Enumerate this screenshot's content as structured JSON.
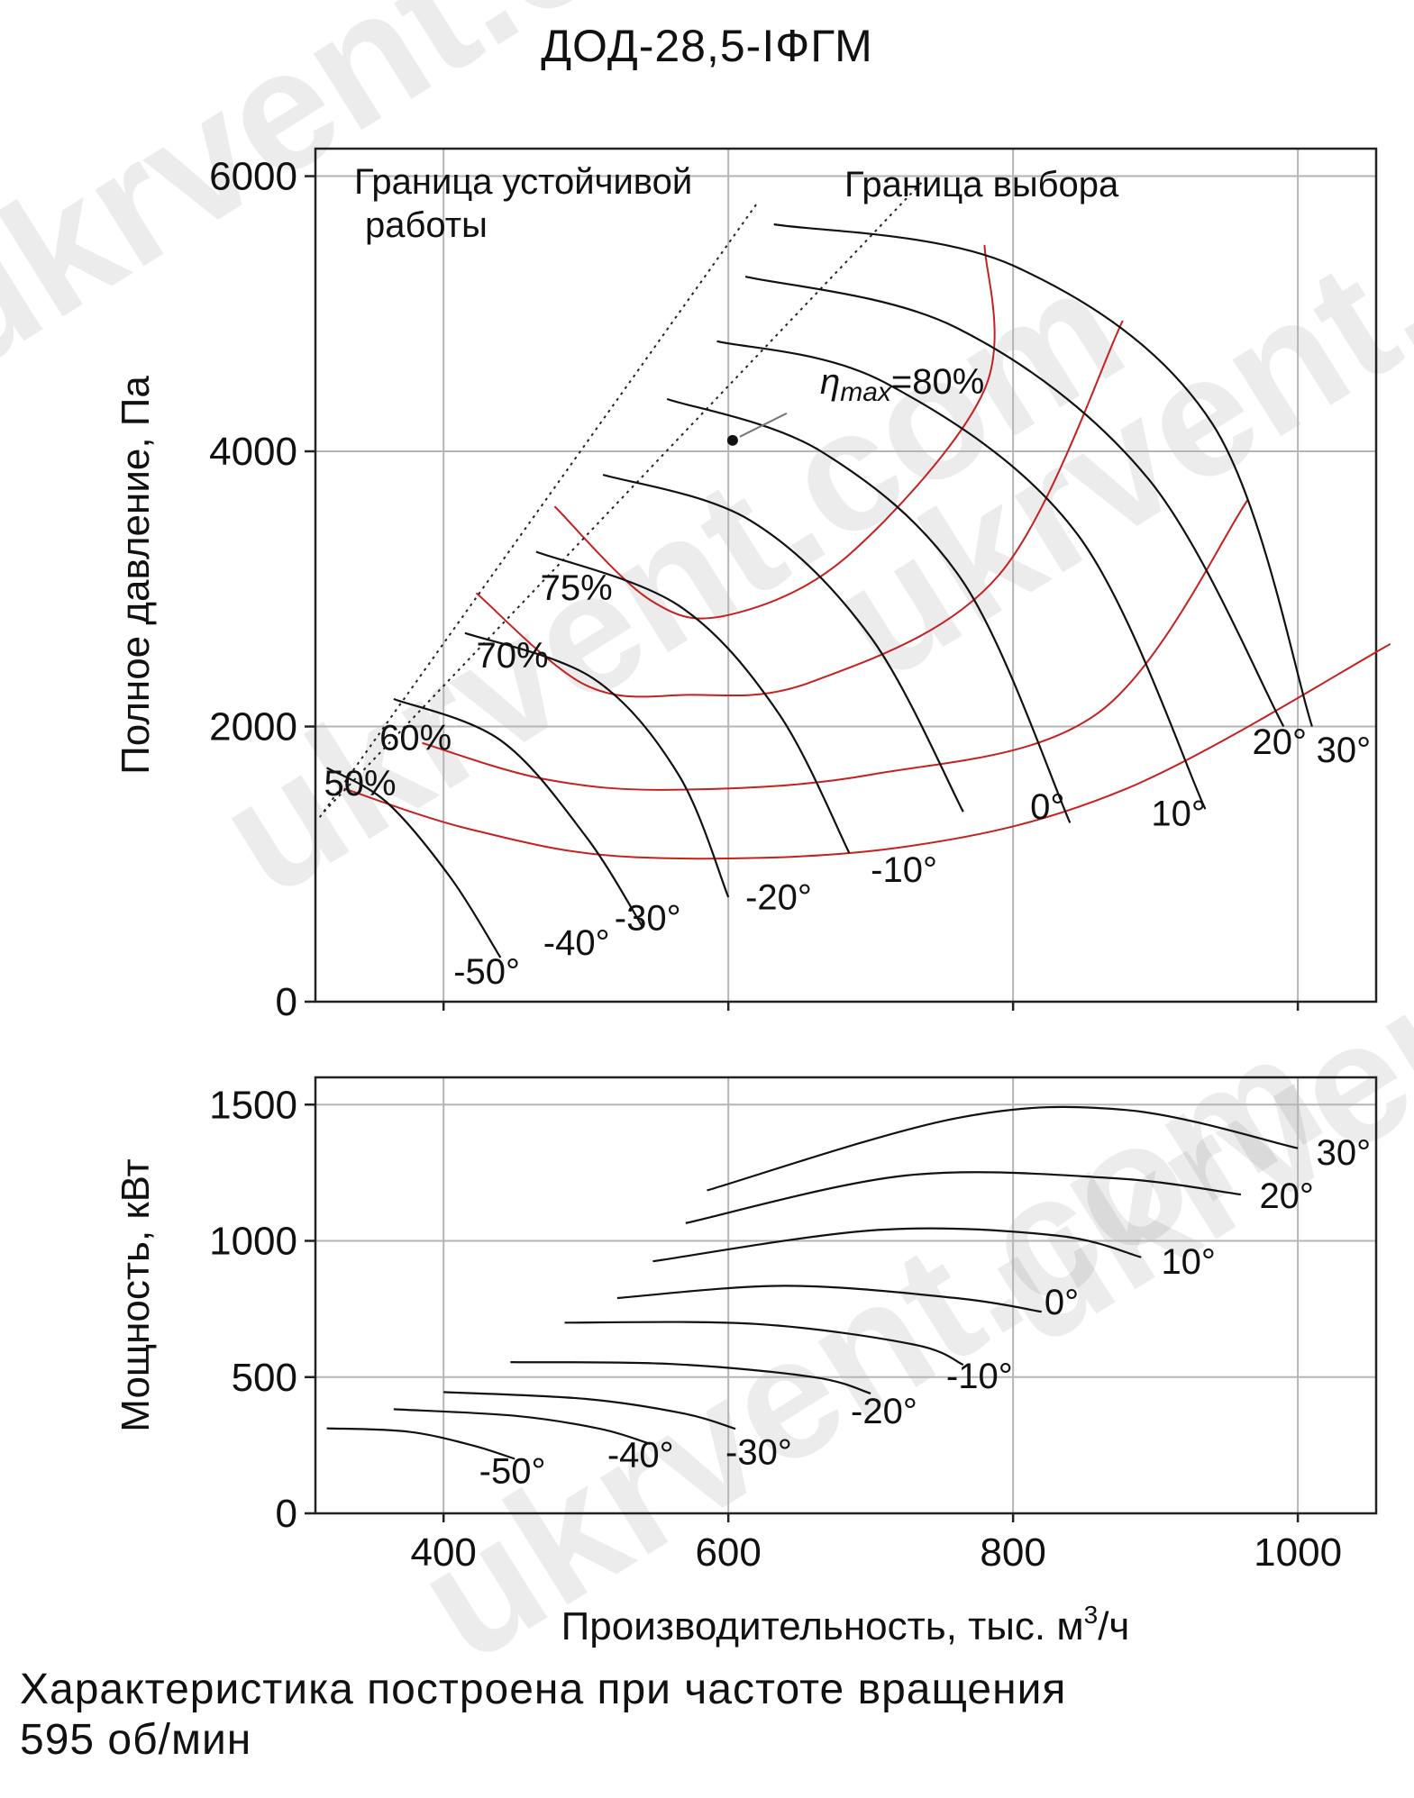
{
  "title": "ДОД-28,5-IФГМ",
  "caption": "Характеристика построена при частоте вращения\n595  об/мин",
  "watermark": "ukrvent.com",
  "chart_data": [
    {
      "type": "line",
      "title": "",
      "xlabel": "Производительность, тыс. м³/ч",
      "ylabel": "Полное давление, Па",
      "xlim": [
        310,
        1055
      ],
      "ylim": [
        0,
        6200
      ],
      "xticks": [
        "400",
        "600",
        "800",
        "1000"
      ],
      "yticks": [
        {
          "v": 0,
          "label": "0"
        },
        {
          "v": 2000,
          "label": "2000"
        },
        {
          "v": 4000,
          "label": "4000"
        },
        {
          "v": 6000,
          "label": "6000"
        }
      ],
      "grid": true,
      "series": [
        {
          "name": "-50°",
          "points": [
            [
              318,
              1700
            ],
            [
              360,
              1450
            ],
            [
              405,
              900
            ],
            [
              440,
              320
            ]
          ]
        },
        {
          "name": "-40°",
          "points": [
            [
              365,
              2200
            ],
            [
              440,
              1900
            ],
            [
              500,
              1200
            ],
            [
              540,
              540
            ]
          ]
        },
        {
          "name": "-30°",
          "points": [
            [
              415,
              2680
            ],
            [
              505,
              2350
            ],
            [
              565,
              1650
            ],
            [
              600,
              760
            ]
          ]
        },
        {
          "name": "-20°",
          "points": [
            [
              465,
              3270
            ],
            [
              565,
              2880
            ],
            [
              635,
              2100
            ],
            [
              685,
              1080
            ]
          ]
        },
        {
          "name": "-10°",
          "points": [
            [
              512,
              3830
            ],
            [
              615,
              3500
            ],
            [
              700,
              2650
            ],
            [
              765,
              1380
            ]
          ]
        },
        {
          "name": "0°",
          "points": [
            [
              557,
              4380
            ],
            [
              665,
              4000
            ],
            [
              765,
              3050
            ],
            [
              840,
              1300
            ]
          ]
        },
        {
          "name": "10°",
          "points": [
            [
              592,
              4800
            ],
            [
              710,
              4500
            ],
            [
              845,
              3400
            ],
            [
              935,
              1400
            ]
          ]
        },
        {
          "name": "20°",
          "points": [
            [
              612,
              5270
            ],
            [
              760,
              4900
            ],
            [
              895,
              3800
            ],
            [
              990,
              2000
            ]
          ]
        },
        {
          "name": "30°",
          "points": [
            [
              632,
              5650
            ],
            [
              800,
              5350
            ],
            [
              940,
              4200
            ],
            [
              1010,
              2000
            ]
          ]
        }
      ],
      "efficiency_contours": [
        {
          "name": "50%",
          "points": [
            [
              330,
              1550
            ],
            [
              420,
              1250
            ],
            [
              535,
              1050
            ],
            [
              720,
              1120
            ],
            [
              880,
              1550
            ],
            [
              1065,
              2600
            ]
          ]
        },
        {
          "name": "60%",
          "points": [
            [
              385,
              1880
            ],
            [
              470,
              1620
            ],
            [
              560,
              1540
            ],
            [
              700,
              1650
            ],
            [
              860,
              2100
            ],
            [
              965,
              3650
            ]
          ]
        },
        {
          "name": "70%",
          "points": [
            [
              423,
              2970
            ],
            [
              500,
              2300
            ],
            [
              572,
              2230
            ],
            [
              660,
              2330
            ],
            [
              790,
              3100
            ],
            [
              877,
              4950
            ]
          ]
        },
        {
          "name": "75%",
          "points": [
            [
              478,
              3600
            ],
            [
              545,
              2920
            ],
            [
              600,
              2810
            ],
            [
              685,
              3250
            ],
            [
              780,
              4450
            ],
            [
              780,
              5500
            ]
          ]
        }
      ],
      "labels": [
        {
          "text": "-50°",
          "x": 407,
          "y": 130
        },
        {
          "text": "-40°",
          "x": 470,
          "y": 340
        },
        {
          "text": "-30°",
          "x": 520,
          "y": 520
        },
        {
          "text": "-20°",
          "x": 612,
          "y": 670
        },
        {
          "text": "-10°",
          "x": 700,
          "y": 870
        },
        {
          "text": "0°",
          "x": 812,
          "y": 1330
        },
        {
          "text": "10°",
          "x": 897,
          "y": 1280
        },
        {
          "text": "20°",
          "x": 968,
          "y": 1800
        },
        {
          "text": "30°",
          "x": 1013,
          "y": 1740
        },
        {
          "text": "75%",
          "x": 468,
          "y": 2920
        },
        {
          "text": "70%",
          "x": 423,
          "y": 2430
        },
        {
          "text": "60%",
          "x": 355,
          "y": 1830
        },
        {
          "text": "50%",
          "x": 316,
          "y": 1500
        }
      ],
      "boundary_stable": {
        "label": "Граница устойчивой работы",
        "points": [
          [
            313,
            1340
          ],
          [
            620,
            5800
          ]
        ]
      },
      "boundary_selection": {
        "label": "Граница выбора",
        "points": [
          [
            316,
            1380
          ],
          [
            740,
            6000
          ]
        ]
      },
      "max_efficiency": {
        "label": "max",
        "eta": "η",
        "value": "=80%",
        "x": 603,
        "y": 4080
      }
    },
    {
      "type": "line",
      "title": "",
      "xlabel": "Производительность, тыс. м³/ч",
      "ylabel": "Мощность, кВт",
      "xlim": [
        310,
        1055
      ],
      "ylim": [
        0,
        1600
      ],
      "xticks": [
        "400",
        "600",
        "800",
        "1000"
      ],
      "yticks": [
        {
          "v": 0,
          "label": "0"
        },
        {
          "v": 500,
          "label": "500"
        },
        {
          "v": 1000,
          "label": "1000"
        },
        {
          "v": 1500,
          "label": "1500"
        }
      ],
      "grid": true,
      "series": [
        {
          "name": "-50°",
          "points": [
            [
              318,
              312
            ],
            [
              375,
              300
            ],
            [
              420,
              250
            ],
            [
              450,
              200
            ]
          ]
        },
        {
          "name": "-40°",
          "points": [
            [
              365,
              382
            ],
            [
              450,
              358
            ],
            [
              510,
              310
            ],
            [
              545,
              255
            ]
          ]
        },
        {
          "name": "-30°",
          "points": [
            [
              400,
              445
            ],
            [
              500,
              420
            ],
            [
              570,
              365
            ],
            [
              605,
              310
            ]
          ]
        },
        {
          "name": "-20°",
          "points": [
            [
              447,
              555
            ],
            [
              560,
              548
            ],
            [
              660,
              500
            ],
            [
              700,
              440
            ]
          ]
        },
        {
          "name": "-10°",
          "points": [
            [
              485,
              700
            ],
            [
              620,
              695
            ],
            [
              730,
              620
            ],
            [
              765,
              545
            ]
          ]
        },
        {
          "name": "0°",
          "points": [
            [
              522,
              790
            ],
            [
              640,
              835
            ],
            [
              760,
              790
            ],
            [
              820,
              740
            ]
          ]
        },
        {
          "name": "10°",
          "points": [
            [
              547,
              925
            ],
            [
              705,
              1040
            ],
            [
              830,
              1020
            ],
            [
              890,
              940
            ]
          ]
        },
        {
          "name": "20°",
          "points": [
            [
              570,
              1065
            ],
            [
              725,
              1240
            ],
            [
              870,
              1230
            ],
            [
              960,
              1170
            ]
          ]
        },
        {
          "name": "30°",
          "points": [
            [
              585,
              1185
            ],
            [
              760,
              1450
            ],
            [
              880,
              1480
            ],
            [
              1000,
              1340
            ]
          ]
        }
      ],
      "labels": [
        {
          "text": "-50°",
          "x": 425,
          "y": 110
        },
        {
          "text": "-40°",
          "x": 515,
          "y": 170
        },
        {
          "text": "-30°",
          "x": 598,
          "y": 180
        },
        {
          "text": "-20°",
          "x": 686,
          "y": 330
        },
        {
          "text": "-10°",
          "x": 753,
          "y": 460
        },
        {
          "text": "0°",
          "x": 822,
          "y": 730
        },
        {
          "text": "10°",
          "x": 904,
          "y": 880
        },
        {
          "text": "20°",
          "x": 973,
          "y": 1120
        },
        {
          "text": "30°",
          "x": 1013,
          "y": 1280
        }
      ]
    }
  ]
}
